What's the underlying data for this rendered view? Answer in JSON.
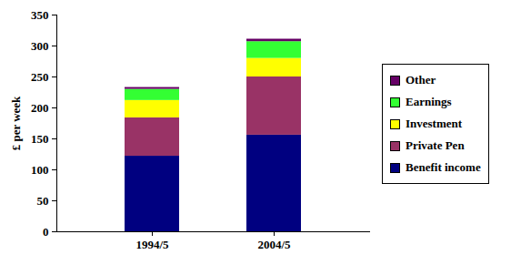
{
  "chart_data": {
    "type": "bar",
    "stacked": true,
    "y_label": "£ per week",
    "categories": [
      "1994/5",
      "2004/5"
    ],
    "series": [
      {
        "name": "Benefit income",
        "color": "#000080",
        "values": [
          122,
          156
        ]
      },
      {
        "name": "Private Pen",
        "color": "#993366",
        "values": [
          62,
          94
        ]
      },
      {
        "name": "Investment",
        "color": "#ffff00",
        "values": [
          28,
          30
        ]
      },
      {
        "name": "Earnings",
        "color": "#33ff33",
        "values": [
          18,
          27
        ]
      },
      {
        "name": "Other",
        "color": "#660066",
        "values": [
          3,
          4
        ]
      }
    ],
    "ylim": [
      0,
      350
    ],
    "yticks": [
      0,
      50,
      100,
      150,
      200,
      250,
      300,
      350
    ],
    "legend": "right",
    "grid": false
  }
}
